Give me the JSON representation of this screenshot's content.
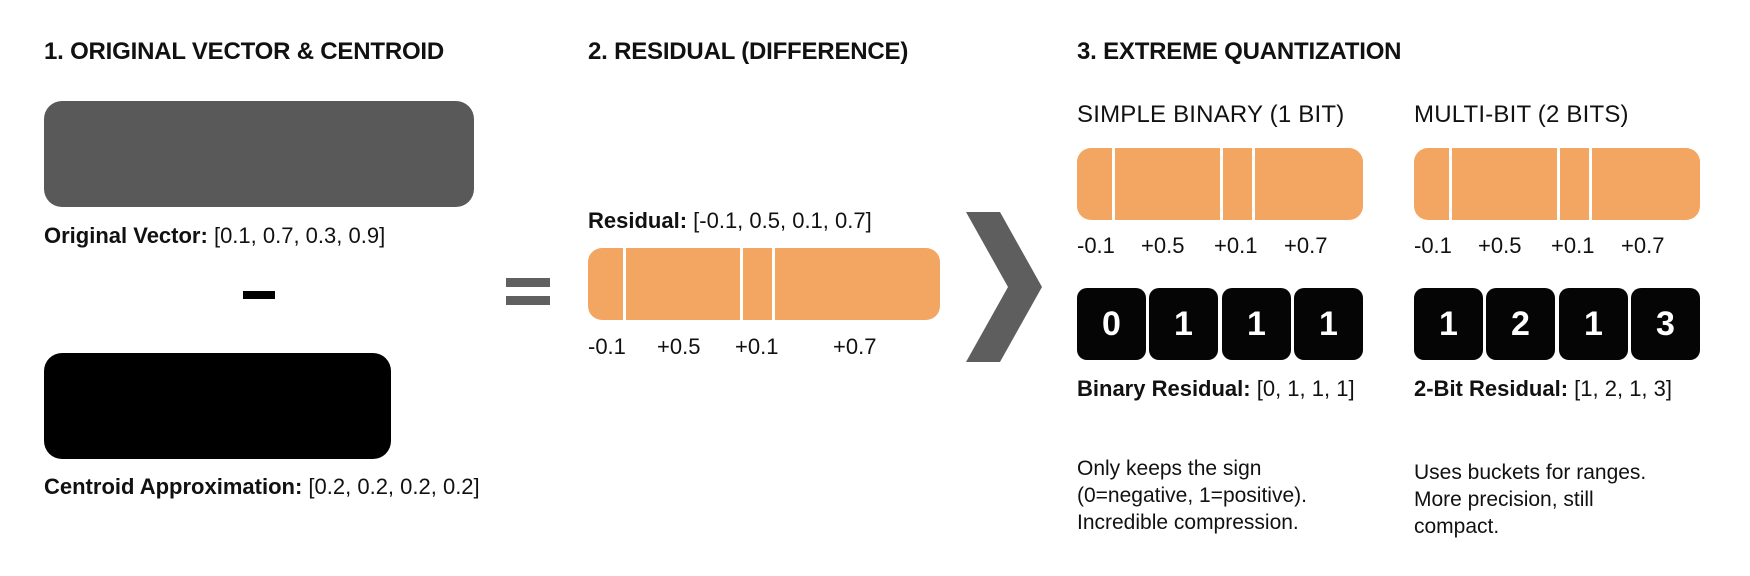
{
  "section1": {
    "title": "1. ORIGINAL VECTOR & CENTROID",
    "original_label": "Original Vector:",
    "original_values": "[0.1, 0.7, 0.3, 0.9]",
    "minus_sign": "−",
    "centroid_label": "Centroid Approximation:",
    "centroid_values": "[0.2, 0.2, 0.2, 0.2]",
    "colors": {
      "original_block": "#595959",
      "centroid_block": "#000000"
    }
  },
  "equals_sign": "=",
  "section2": {
    "title": "2. RESIDUAL (DIFFERENCE)",
    "residual_label": "Residual:",
    "residual_values": "[-0.1, 0.5, 0.1, 0.7]",
    "ticks": [
      "-0.1",
      "+0.5",
      "+0.1",
      "+0.7"
    ],
    "colors": {
      "bar": "#f2a661"
    }
  },
  "arrow": {
    "icon": "chevron-right-icon",
    "color": "#5e5e5e"
  },
  "section3": {
    "title": "3. EXTREME QUANTIZATION",
    "binary": {
      "subtitle": "SIMPLE BINARY (1 BIT)",
      "ticks": [
        "-0.1",
        "+0.5",
        "+0.1",
        "+0.7"
      ],
      "bits": [
        "0",
        "1",
        "1",
        "1"
      ],
      "result_label": "Binary Residual:",
      "result_values": "[0, 1, 1, 1]",
      "description": [
        "Only keeps the sign",
        "(0=negative, 1=positive).",
        "Incredible compression."
      ]
    },
    "multibit": {
      "subtitle": "MULTI-BIT (2 BITS)",
      "ticks": [
        "-0.1",
        "+0.5",
        "+0.1",
        "+0.7"
      ],
      "bits": [
        "1",
        "2",
        "1",
        "3"
      ],
      "result_label": "2-Bit Residual:",
      "result_values": "[1, 2, 1, 3]",
      "description": [
        "Uses buckets for ranges.",
        "More precision, still",
        "compact."
      ]
    }
  }
}
